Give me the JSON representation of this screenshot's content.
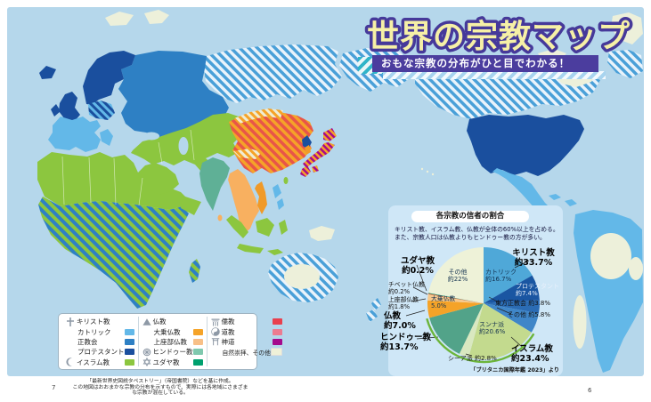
{
  "page": {
    "left_number": "7",
    "right_number": "6"
  },
  "header": {
    "title": "世界の宗教マップ",
    "subtitle": "おもな宗教の分布がひと目でわかる！"
  },
  "legend": {
    "columns": [
      {
        "rows": [
          {
            "label": "キリスト教",
            "icon": "cross-icon"
          },
          {
            "label": "カトリック",
            "swatch": "#63b8e8"
          },
          {
            "label": "正教会",
            "swatch": "#2e80c4"
          },
          {
            "label": "プロテスタント",
            "swatch": "#1a4f9e"
          },
          {
            "label": "イスラム教",
            "icon": "crescent-icon",
            "swatch": "#8cc63f"
          }
        ]
      },
      {
        "rows": [
          {
            "label": "仏教",
            "icon": "mountain-icon"
          },
          {
            "label": "大乗仏教",
            "swatch": "#f5a328"
          },
          {
            "label": "上座部仏教",
            "swatch": "#f8c088"
          },
          {
            "label": "ヒンドゥー教",
            "icon": "wheel-icon",
            "swatch": "#7fc8ae"
          },
          {
            "label": "ユダヤ教",
            "icon": "star-icon",
            "swatch": "#00a06e"
          }
        ]
      },
      {
        "rows": [
          {
            "label": "儒教",
            "icon": "temple-icon",
            "swatch": "#e8404e"
          },
          {
            "label": "道教",
            "icon": "yinyang-icon",
            "swatch": "#ec7b90"
          },
          {
            "label": "神道",
            "icon": "torii-icon",
            "swatch": "#a50a8c"
          },
          {
            "label": "自然崇拝、その他",
            "swatch": "#eff1d8"
          }
        ]
      }
    ]
  },
  "footnotes": {
    "line1": "「最新世界史図説タペストリー」（帝国書院）などを基に作成。",
    "line2": "この地図はおおまかな宗教の分布を示すもので、実際には各地域にさまざまな宗教が混在している。"
  },
  "map": {
    "regions": [
      {
        "area": "西ヨーロッパ・中南米・フィリピン",
        "fill": "カトリック"
      },
      {
        "area": "北欧・イギリス・アメリカ",
        "fill": "プロテスタント"
      },
      {
        "area": "ロシア・東ヨーロッパ",
        "fill": "正教会"
      },
      {
        "area": "北アフリカ・中東・中央アジア・インドネシア",
        "fill": "イスラム教"
      },
      {
        "area": "インド",
        "fill": "ヒンドゥー教"
      },
      {
        "area": "東南アジア・スリランカ",
        "fill": "上座部仏教"
      },
      {
        "area": "中国",
        "fill": "儒教・道教・大乗仏教の混在"
      },
      {
        "area": "日本",
        "fill": "神道・大乗仏教の混在"
      },
      {
        "area": "シベリア・カナダ・オーストラリア",
        "fill": "キリスト教の混在"
      },
      {
        "area": "サハラ以南アフリカ",
        "fill": "イスラム教・キリスト教の混在"
      }
    ]
  },
  "chart_data": {
    "type": "pie",
    "title": "各宗教の信者の割合",
    "description": "キリスト教、イスラム教、仏教が全体の60%以上を占める。\nまた、宗教人口は仏教よりもヒンドゥー教の方が多い。",
    "source": "「ブリタニカ国際年鑑 2023」より",
    "unit": "%",
    "slices": [
      {
        "id": "catholic",
        "name": "カトリック",
        "group": "キリスト教",
        "value": 16.7,
        "color": "#4fa8d8"
      },
      {
        "id": "protestant",
        "name": "プロテスタント",
        "group": "キリスト教",
        "value": 7.4,
        "color": "#1a56a2"
      },
      {
        "id": "orthodox",
        "name": "東方正教会",
        "group": "キリスト教",
        "value": 3.8,
        "color": "#2b6cb4"
      },
      {
        "id": "other-christian",
        "name": "その他（キリスト教）",
        "group": "キリスト教",
        "value": 5.8,
        "color": "#3f86c8"
      },
      {
        "id": "sunni",
        "name": "スンナ派",
        "group": "イスラム教",
        "value": 20.6,
        "color": "#c3da8e"
      },
      {
        "id": "shia",
        "name": "シーア派",
        "group": "イスラム教",
        "value": 2.8,
        "color": "#d9e8c0"
      },
      {
        "id": "hindu",
        "name": "ヒンドゥー教",
        "group": "ヒンドゥー教",
        "value": 13.7,
        "color": "#52a389"
      },
      {
        "id": "mahayana",
        "name": "大乗仏教",
        "group": "仏教",
        "value": 5.0,
        "color": "#f5a328"
      },
      {
        "id": "theravada",
        "name": "上座部仏教",
        "group": "仏教",
        "value": 1.8,
        "color": "#f8c98c"
      },
      {
        "id": "tibetan",
        "name": "チベット仏教",
        "group": "仏教",
        "value": 0.2,
        "color": "#e04e2a"
      },
      {
        "id": "judaism",
        "name": "ユダヤ教",
        "group": "ユダヤ教",
        "value": 0.2,
        "color": "#008f5f"
      },
      {
        "id": "other",
        "name": "その他",
        "group": "その他",
        "value": 22.0,
        "color": "#eef2d8"
      }
    ],
    "labels": {
      "christianity": {
        "name": "キリスト教",
        "value": "約33.7%"
      },
      "catholic": {
        "name": "カトリック",
        "value": "約16.7%"
      },
      "protestant": {
        "name": "プロテスタント",
        "value": "約7.4%"
      },
      "orthodox": {
        "name": "東方正教会",
        "value": "約3.8%"
      },
      "other_christian": {
        "name": "その他",
        "value": "約5.8%"
      },
      "sunni": {
        "name": "スンナ派",
        "value": "約20.6%"
      },
      "islam": {
        "name": "イスラム教",
        "value": "約23.4%"
      },
      "shia": {
        "name": "シーア派",
        "value": "約2.8%"
      },
      "hindu": {
        "name": "ヒンドゥー教",
        "value": "約13.7%"
      },
      "buddhism": {
        "name": "仏教",
        "value": "約7.0%"
      },
      "mahayana": {
        "name": "大乗仏教",
        "value": "5.0%"
      },
      "theravada": {
        "name": "上座部仏教",
        "value": "約1.8%"
      },
      "tibetan": {
        "name": "チベット仏教",
        "value": "約0.2%"
      },
      "judaism": {
        "name": "ユダヤ教",
        "value": "約0.2%"
      },
      "other": {
        "name": "その他",
        "value": "約22%"
      }
    },
    "highlight_rim": {
      "from_slice": 4,
      "to_slice": 6,
      "color": "#6cb53a"
    }
  },
  "colors": {
    "ocean": "#b5d7eb",
    "panel": "#cfe7f7",
    "banner_purple": "#4b3d9e",
    "title_fill": "#f6f0a6",
    "title_outline": "#46399a",
    "catholic": "#63b8e8",
    "orthodox": "#2e80c4",
    "protestant": "#1a4f9e",
    "islam": "#8cc63f",
    "hindu": "#5fb096",
    "mahayana": "#f5a328",
    "theravada": "#f8c088",
    "judaism": "#00a06e",
    "confucianism": "#e8404e",
    "taoism": "#ec7b90",
    "shinto": "#a50a8c",
    "nature_other": "#eff1d8"
  }
}
